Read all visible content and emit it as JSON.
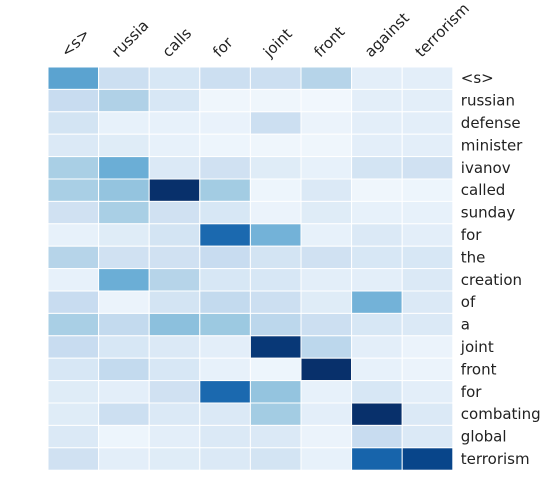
{
  "chart_data": {
    "type": "heatmap",
    "x_labels": [
      "<s>",
      "russia",
      "calls",
      "for",
      "joint",
      "front",
      "against",
      "terrorism"
    ],
    "y_labels": [
      "<s>",
      "russian",
      "defense",
      "minister",
      "ivanov",
      "called",
      "sunday",
      "for",
      "the",
      "creation",
      "of",
      "a",
      "joint",
      "front",
      "for",
      "combating",
      "global",
      "terrorism"
    ],
    "values": [
      [
        0.55,
        0.22,
        0.16,
        0.22,
        0.22,
        0.3,
        0.1,
        0.1
      ],
      [
        0.24,
        0.32,
        0.16,
        0.04,
        0.04,
        0.03,
        0.1,
        0.1
      ],
      [
        0.18,
        0.08,
        0.08,
        0.07,
        0.22,
        0.06,
        0.1,
        0.1
      ],
      [
        0.14,
        0.12,
        0.08,
        0.05,
        0.04,
        0.04,
        0.1,
        0.1
      ],
      [
        0.34,
        0.5,
        0.14,
        0.2,
        0.12,
        0.08,
        0.18,
        0.2
      ],
      [
        0.34,
        0.4,
        1.0,
        0.36,
        0.05,
        0.14,
        0.04,
        0.05
      ],
      [
        0.2,
        0.34,
        0.2,
        0.16,
        0.06,
        0.12,
        0.08,
        0.08
      ],
      [
        0.08,
        0.12,
        0.18,
        0.78,
        0.48,
        0.08,
        0.14,
        0.1
      ],
      [
        0.3,
        0.2,
        0.2,
        0.24,
        0.18,
        0.2,
        0.16,
        0.16
      ],
      [
        0.08,
        0.5,
        0.3,
        0.16,
        0.16,
        0.1,
        0.1,
        0.14
      ],
      [
        0.24,
        0.06,
        0.18,
        0.26,
        0.22,
        0.12,
        0.48,
        0.14
      ],
      [
        0.34,
        0.26,
        0.42,
        0.38,
        0.28,
        0.22,
        0.16,
        0.14
      ],
      [
        0.24,
        0.16,
        0.14,
        0.1,
        0.97,
        0.28,
        0.1,
        0.06
      ],
      [
        0.16,
        0.26,
        0.16,
        0.08,
        0.05,
        1.0,
        0.08,
        0.06
      ],
      [
        0.12,
        0.1,
        0.2,
        0.78,
        0.4,
        0.08,
        0.16,
        0.1
      ],
      [
        0.12,
        0.22,
        0.14,
        0.14,
        0.36,
        0.1,
        1.0,
        0.14
      ],
      [
        0.14,
        0.05,
        0.1,
        0.14,
        0.14,
        0.06,
        0.24,
        0.14
      ],
      [
        0.2,
        0.1,
        0.12,
        0.14,
        0.18,
        0.08,
        0.8,
        0.92
      ]
    ],
    "colormap": "Blues",
    "value_range": [
      0,
      1
    ],
    "grid": true,
    "x_tick_rotation_deg": -45
  }
}
